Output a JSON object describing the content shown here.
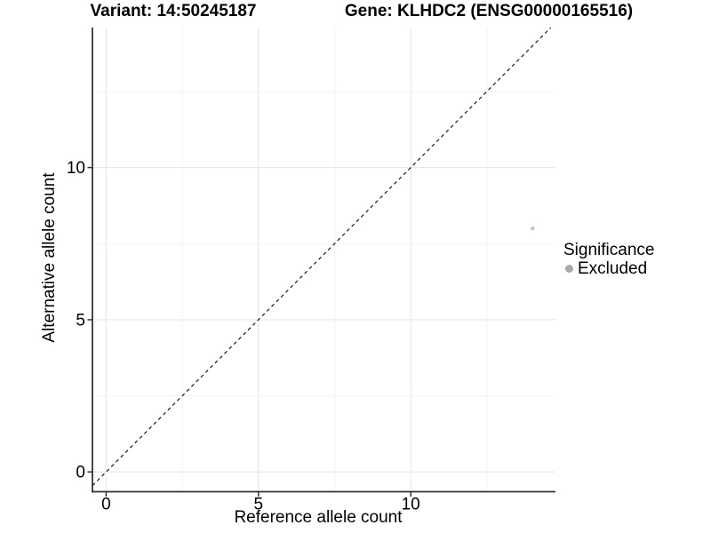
{
  "chart_data": {
    "type": "scatter",
    "title_left": "Variant: 14:50245187",
    "title_right": "Gene: KLHDC2 (ENSG00000165516)",
    "xlabel": "Reference allele count",
    "ylabel": "Alternative allele count",
    "xlim": [
      -0.45,
      14.75
    ],
    "ylim": [
      -0.65,
      14.6
    ],
    "x_ticks": [
      0,
      5,
      10
    ],
    "y_ticks": [
      0,
      5,
      10
    ],
    "x_minor_ticks": [
      2.5,
      7.5,
      12.5
    ],
    "y_minor_ticks": [
      2.5,
      7.5,
      12.5
    ],
    "grid": true,
    "identity_line": {
      "slope": 1,
      "intercept": 0,
      "style": "dashed"
    },
    "series": [
      {
        "name": "Excluded",
        "points": [
          {
            "x": 14,
            "y": 8
          }
        ]
      }
    ],
    "legend": {
      "title": "Significance",
      "position": "right",
      "items": [
        {
          "label": "Excluded",
          "color": "#a9a9a9"
        }
      ]
    }
  },
  "colors": {
    "background": "#ffffff",
    "grid_major": "#e8e8e8",
    "grid_minor": "#f2f2f2",
    "axis_line": "#333333",
    "tick_mark": "#333333",
    "identity_line": "#1a1a1a",
    "point": "#c3c3c3",
    "legend_key": "#a9a9a9",
    "text": "#000000"
  }
}
